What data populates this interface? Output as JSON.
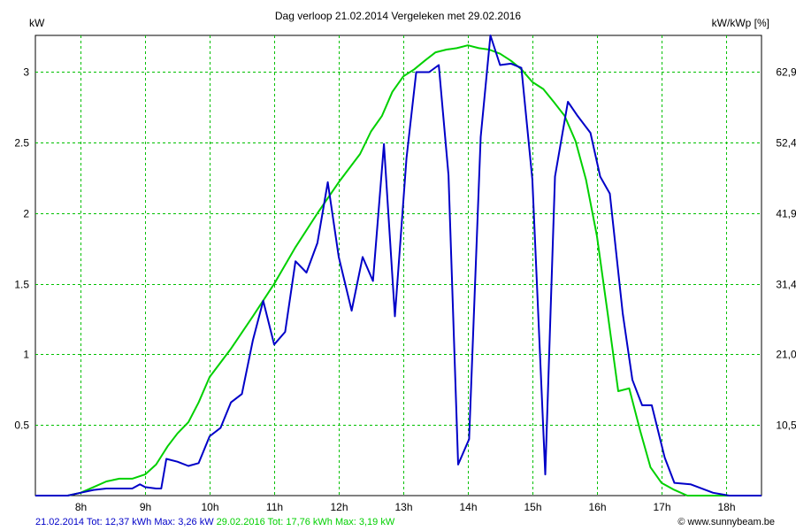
{
  "title": "Dag  verloop 21.02.2014   Vergeleken met 29.02.2016",
  "y_left_unit": "kW",
  "y_right_unit": "kW/kWp [%]",
  "footer": {
    "series1_text": "21.02.2014 Tot: 12,37 kWh Max: 3,26 kW",
    "series2_text": "29.02.2016 Tot: 17,76 kWh Max: 3,19 kW",
    "series1_color": "#0000c8",
    "series2_color": "#00d000"
  },
  "credit": "© www.sunnybeam.be",
  "chart_data": {
    "type": "line",
    "x_unit": "hour",
    "xlim": [
      7.3,
      18.55
    ],
    "ylim": [
      0,
      3.26
    ],
    "grid": true,
    "x_ticks": [
      8,
      9,
      10,
      11,
      12,
      13,
      14,
      15,
      16,
      17,
      18
    ],
    "x_tick_labels": [
      "8h",
      "9h",
      "10h",
      "11h",
      "12h",
      "13h",
      "14h",
      "15h",
      "16h",
      "17h",
      "18h"
    ],
    "y_ticks": [
      0.5,
      1,
      1.5,
      2,
      2.5,
      3
    ],
    "y_tick_labels": [
      "0.5",
      "1",
      "1.5",
      "2",
      "2.5",
      "3"
    ],
    "y2_tick_labels": [
      "10,5",
      "21,0",
      "31,4",
      "41,9",
      "52,4",
      "62,9"
    ],
    "series": [
      {
        "name": "21.02.2014",
        "color": "#0000c8",
        "x": [
          7.3,
          7.8,
          8.0,
          8.2,
          8.4,
          8.6,
          8.8,
          8.92,
          9.0,
          9.17,
          9.25,
          9.33,
          9.5,
          9.67,
          9.83,
          10.0,
          10.17,
          10.33,
          10.5,
          10.67,
          10.83,
          11.0,
          11.17,
          11.33,
          11.5,
          11.67,
          11.83,
          12.0,
          12.2,
          12.37,
          12.53,
          12.7,
          12.87,
          13.05,
          13.2,
          13.4,
          13.55,
          13.7,
          13.85,
          14.02,
          14.2,
          14.35,
          14.5,
          14.67,
          14.83,
          15.0,
          15.2,
          15.35,
          15.55,
          15.7,
          15.9,
          16.05,
          16.2,
          16.4,
          16.55,
          16.7,
          16.85,
          17.05,
          17.2,
          17.45,
          17.8,
          18.05,
          18.3,
          18.55
        ],
        "y": [
          0.0,
          0.0,
          0.02,
          0.04,
          0.05,
          0.05,
          0.05,
          0.08,
          0.06,
          0.05,
          0.05,
          0.26,
          0.24,
          0.21,
          0.23,
          0.42,
          0.48,
          0.66,
          0.72,
          1.1,
          1.38,
          1.07,
          1.16,
          1.66,
          1.58,
          1.79,
          2.22,
          1.69,
          1.31,
          1.69,
          1.52,
          2.49,
          1.27,
          2.39,
          3.0,
          3.0,
          3.05,
          2.27,
          0.22,
          0.4,
          2.54,
          3.26,
          3.05,
          3.06,
          3.03,
          2.24,
          0.15,
          2.26,
          2.79,
          2.69,
          2.57,
          2.26,
          2.14,
          1.29,
          0.82,
          0.64,
          0.64,
          0.27,
          0.09,
          0.08,
          0.02,
          0.0,
          0.0,
          0.0
        ]
      },
      {
        "name": "29.02.2016",
        "color": "#00d000",
        "x": [
          7.3,
          7.8,
          8.0,
          8.2,
          8.4,
          8.6,
          8.8,
          9.0,
          9.17,
          9.35,
          9.5,
          9.67,
          9.83,
          10.0,
          10.33,
          10.67,
          11.0,
          11.33,
          11.67,
          12.0,
          12.33,
          12.5,
          12.67,
          12.83,
          13.0,
          13.17,
          13.33,
          13.5,
          13.67,
          13.83,
          14.0,
          14.17,
          14.33,
          14.5,
          14.67,
          14.83,
          15.0,
          15.17,
          15.33,
          15.5,
          15.67,
          15.83,
          16.0,
          16.17,
          16.33,
          16.5,
          16.67,
          16.83,
          17.0,
          17.2,
          17.4,
          17.6,
          17.8,
          18.0,
          18.2,
          18.4,
          18.55
        ],
        "y": [
          0.0,
          0.0,
          0.02,
          0.06,
          0.1,
          0.12,
          0.12,
          0.15,
          0.22,
          0.35,
          0.44,
          0.52,
          0.66,
          0.84,
          1.04,
          1.27,
          1.5,
          1.76,
          2.0,
          2.22,
          2.42,
          2.58,
          2.69,
          2.86,
          2.97,
          3.02,
          3.08,
          3.14,
          3.16,
          3.17,
          3.19,
          3.17,
          3.16,
          3.13,
          3.08,
          3.02,
          2.93,
          2.88,
          2.79,
          2.69,
          2.51,
          2.24,
          1.84,
          1.28,
          0.74,
          0.76,
          0.46,
          0.2,
          0.09,
          0.04,
          0.0,
          0.0,
          0.0,
          0.0,
          0.0,
          0.0,
          0.0
        ]
      }
    ]
  }
}
